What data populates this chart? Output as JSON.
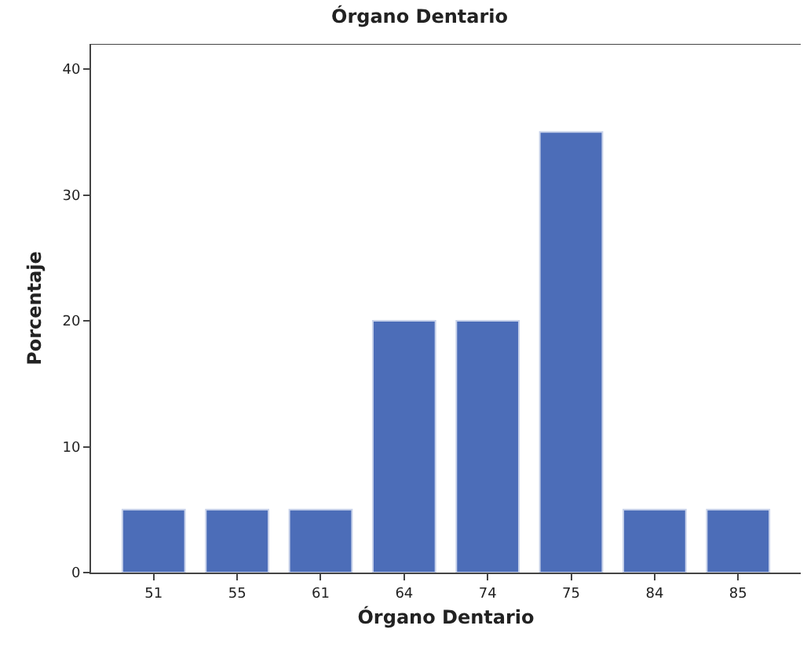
{
  "chart_data": {
    "type": "bar",
    "title": "Órgano Dentario",
    "xlabel": "Órgano Dentario",
    "ylabel": "Porcentaje",
    "categories": [
      "51",
      "55",
      "61",
      "64",
      "74",
      "75",
      "84",
      "85"
    ],
    "values": [
      5,
      5,
      5,
      20,
      20,
      35,
      5,
      5
    ],
    "color": "#4c6db8",
    "ylim": [
      0,
      42
    ],
    "yticks": [
      0,
      10,
      20,
      30,
      40
    ],
    "legend": false
  }
}
